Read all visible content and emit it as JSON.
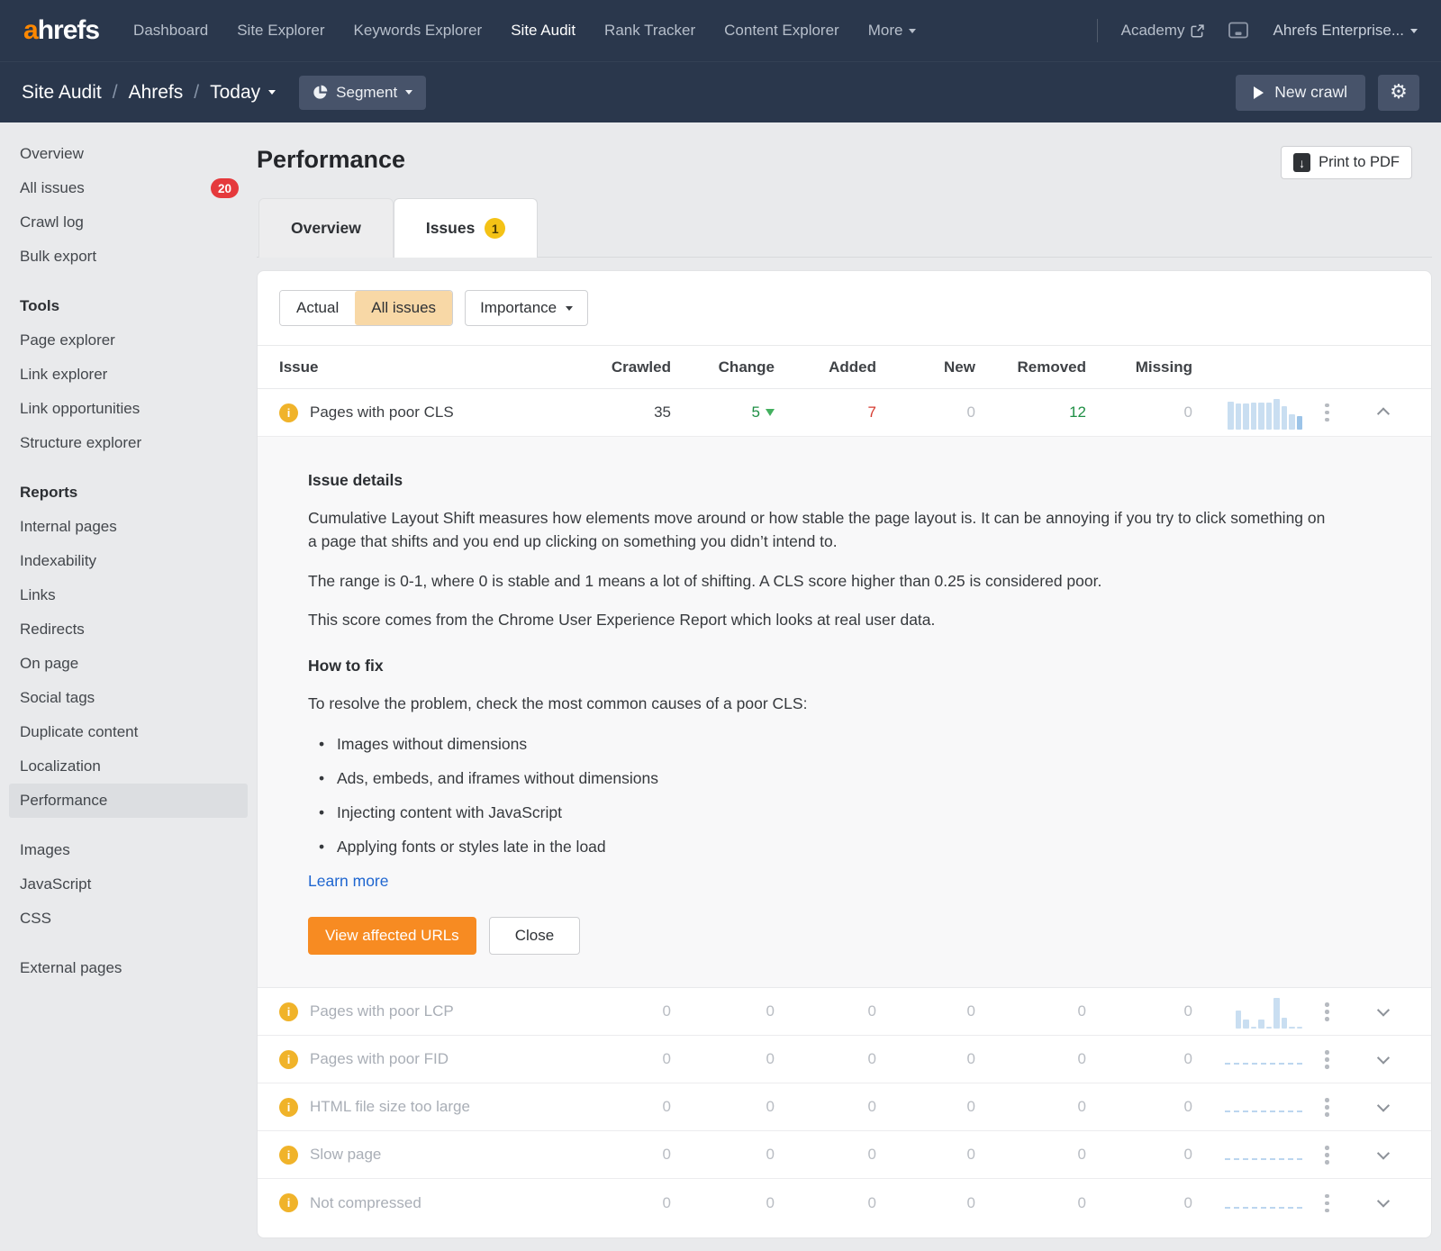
{
  "colors": {
    "nav_navy": "#2a374c",
    "accent_orange": "#ff8800",
    "primary_button_orange": "#f78b22",
    "selected_chip_peach": "#f8d8a6",
    "badge_red": "#e5393c",
    "badge_yellow": "#f4c216",
    "info_icon_yellow": "#f0b32a",
    "positive_green": "#1f8f45",
    "negative_red": "#d63b30",
    "link_blue": "#1f66d0",
    "spark_blue": "#c9def1",
    "spark_blue_dark": "#9cc4e8"
  },
  "topnav": {
    "logo_prefix": "a",
    "logo_rest": "hrefs",
    "items": [
      {
        "label": "Dashboard"
      },
      {
        "label": "Site Explorer"
      },
      {
        "label": "Keywords Explorer"
      },
      {
        "label": "Site Audit",
        "active": true
      },
      {
        "label": "Rank Tracker"
      },
      {
        "label": "Content Explorer"
      },
      {
        "label": "More",
        "caret": true
      }
    ],
    "academy_label": "Academy",
    "account_label": "Ahrefs Enterprise..."
  },
  "subnav": {
    "breadcrumb": [
      {
        "label": "Site Audit"
      },
      {
        "label": "Ahrefs"
      },
      {
        "label": "Today",
        "caret": true
      }
    ],
    "segment_label": "Segment",
    "new_crawl_label": "New crawl"
  },
  "sidebar": {
    "groups": [
      {
        "heading": null,
        "items": [
          {
            "label": "Overview"
          },
          {
            "label": "All issues",
            "badge": "20"
          },
          {
            "label": "Crawl log"
          },
          {
            "label": "Bulk export"
          }
        ]
      },
      {
        "heading": "Tools",
        "items": [
          {
            "label": "Page explorer"
          },
          {
            "label": "Link explorer"
          },
          {
            "label": "Link opportunities"
          },
          {
            "label": "Structure explorer"
          }
        ]
      },
      {
        "heading": "Reports",
        "items": [
          {
            "label": "Internal pages"
          },
          {
            "label": "Indexability"
          },
          {
            "label": "Links"
          },
          {
            "label": "Redirects"
          },
          {
            "label": "On page"
          },
          {
            "label": "Social tags"
          },
          {
            "label": "Duplicate content"
          },
          {
            "label": "Localization"
          },
          {
            "label": "Performance",
            "active": true
          }
        ]
      },
      {
        "heading": null,
        "items": [
          {
            "label": "Images"
          },
          {
            "label": "JavaScript"
          },
          {
            "label": "CSS"
          }
        ]
      },
      {
        "heading": null,
        "items": [
          {
            "label": "External pages"
          }
        ]
      }
    ]
  },
  "main": {
    "title": "Performance",
    "print_label": "Print to PDF",
    "tabs": [
      {
        "label": "Overview"
      },
      {
        "label": "Issues",
        "badge": "1",
        "active": true
      }
    ],
    "filters": {
      "segments": [
        {
          "label": "Actual"
        },
        {
          "label": "All issues",
          "selected": true
        }
      ],
      "dropdown_label": "Importance"
    },
    "table": {
      "columns": [
        "Issue",
        "Crawled",
        "Change",
        "Added",
        "New",
        "Removed",
        "Missing"
      ],
      "rows": [
        {
          "label": "Pages with poor CLS",
          "crawled": "35",
          "change": "5",
          "change_trend": "down",
          "change_color": "green",
          "added": "7",
          "added_color": "red",
          "new": "0",
          "removed": "12",
          "removed_color": "green",
          "missing": "0",
          "expanded": true,
          "spark": {
            "type": "bars",
            "values": [
              86,
              80,
              80,
              82,
              82,
              82,
              94,
              72,
              48,
              42
            ],
            "highlight_last": true
          }
        },
        {
          "label": "Pages with poor LCP",
          "crawled": "0",
          "change": "0",
          "added": "0",
          "new": "0",
          "removed": "0",
          "missing": "0",
          "muted": true,
          "spark": {
            "type": "bars",
            "values": [
              55,
              27,
              6,
              27,
              6,
              95,
              32,
              6,
              6
            ]
          }
        },
        {
          "label": "Pages with poor FID",
          "crawled": "0",
          "change": "0",
          "added": "0",
          "new": "0",
          "removed": "0",
          "missing": "0",
          "muted": true,
          "spark": {
            "type": "dash"
          }
        },
        {
          "label": "HTML file size too large",
          "crawled": "0",
          "change": "0",
          "added": "0",
          "new": "0",
          "removed": "0",
          "missing": "0",
          "muted": true,
          "spark": {
            "type": "dash"
          }
        },
        {
          "label": "Slow page",
          "crawled": "0",
          "change": "0",
          "added": "0",
          "new": "0",
          "removed": "0",
          "missing": "0",
          "muted": true,
          "spark": {
            "type": "dash"
          }
        },
        {
          "label": "Not compressed",
          "crawled": "0",
          "change": "0",
          "added": "0",
          "new": "0",
          "removed": "0",
          "missing": "0",
          "muted": true,
          "spark": {
            "type": "dash"
          }
        }
      ]
    },
    "details": {
      "heading": "Issue details",
      "paragraphs": [
        "Cumulative Layout Shift measures how elements move around or how stable the page layout is. It can be annoying if you try to click something on a page that shifts and you end up clicking on something you didn’t intend to.",
        "The range is 0-1, where 0 is stable and 1 means a lot of shifting. A CLS score higher than 0.25 is considered poor.",
        "This score comes from the Chrome User Experience Report which looks at real user data."
      ],
      "fix_heading": "How to fix",
      "fix_intro": "To resolve the problem, check the most common causes of a poor CLS:",
      "bullets": [
        "Images without dimensions",
        "Ads, embeds, and iframes without dimensions",
        "Injecting content with JavaScript",
        "Applying fonts or styles late in the load"
      ],
      "learn_more": "Learn more",
      "primary_button": "View affected URLs",
      "secondary_button": "Close"
    }
  }
}
